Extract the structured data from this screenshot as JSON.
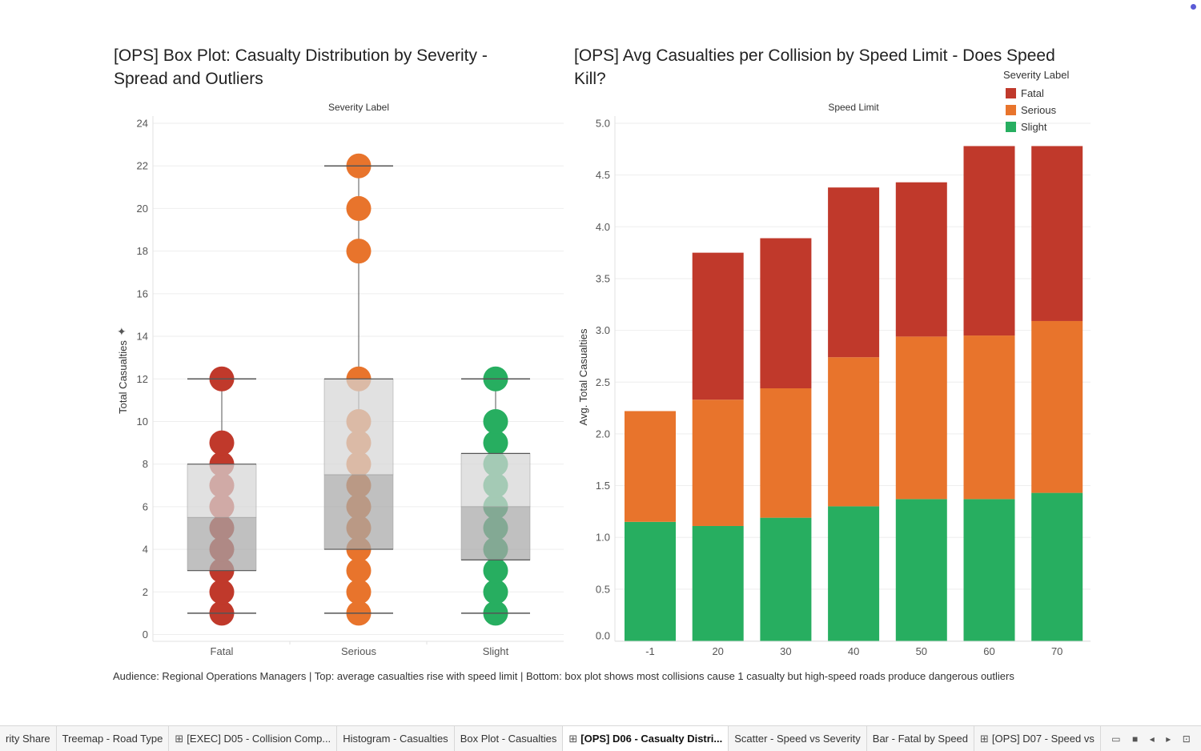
{
  "titles": {
    "left": "[OPS] Box Plot: Casualty Distribution by Severity - Spread and Outliers",
    "right": "[OPS] Avg Casualties per Collision by Speed Limit - Does Speed Kill?"
  },
  "caption": "Audience: Regional Operations Managers | Top: average casualties rise with speed limit | Bottom: box plot shows most collisions cause 1 casualty but high-speed roads produce dangerous outliers",
  "legend": {
    "title": "Severity Label",
    "items": [
      {
        "label": "Fatal",
        "color": "#c0392b"
      },
      {
        "label": "Serious",
        "color": "#e8742c"
      },
      {
        "label": "Slight",
        "color": "#27ae60"
      }
    ]
  },
  "chart_data": [
    {
      "type": "box",
      "title": "[OPS] Box Plot: Casualty Distribution by Severity - Spread and Outliers",
      "xlabel": "Severity Label",
      "ylabel": "Total Casualties",
      "ylim": [
        0,
        24
      ],
      "yticks": [
        0,
        2,
        4,
        6,
        8,
        10,
        12,
        14,
        16,
        18,
        20,
        22,
        24
      ],
      "categories": [
        "Fatal",
        "Serious",
        "Slight"
      ],
      "colors": [
        "#c0392b",
        "#e8742c",
        "#27ae60"
      ],
      "boxes": [
        {
          "category": "Fatal",
          "whisker_low": 1,
          "q1": 3,
          "median": 5.5,
          "q3": 8,
          "whisker_high": 12
        },
        {
          "category": "Serious",
          "whisker_low": 1,
          "q1": 4,
          "median": 7.5,
          "q3": 12,
          "whisker_high": 22
        },
        {
          "category": "Slight",
          "whisker_low": 1,
          "q1": 3.5,
          "median": 6,
          "q3": 8.5,
          "whisker_high": 12
        }
      ],
      "points": [
        [
          1,
          2,
          3,
          4,
          5,
          6,
          7,
          8,
          9,
          12
        ],
        [
          1,
          2,
          3,
          4,
          5,
          6,
          7,
          8,
          9,
          10,
          12,
          18,
          20,
          22
        ],
        [
          1,
          2,
          3,
          4,
          5,
          6,
          7,
          8,
          9,
          10,
          12
        ]
      ]
    },
    {
      "type": "bar",
      "stacked": true,
      "title": "[OPS] Avg Casualties per Collision by Speed Limit - Does Speed Kill?",
      "xlabel": "Speed Limit",
      "ylabel": "Avg. Total Casualties",
      "ylim": [
        0,
        5
      ],
      "yticks": [
        "0.0",
        "0.5",
        "1.0",
        "1.5",
        "2.0",
        "2.5",
        "3.0",
        "3.5",
        "4.0",
        "4.5",
        "5.0"
      ],
      "categories": [
        "-1",
        "20",
        "30",
        "40",
        "50",
        "60",
        "70"
      ],
      "legend_position": "top-right",
      "series": [
        {
          "name": "Slight",
          "color": "#27ae60",
          "values": [
            1.15,
            1.11,
            1.19,
            1.3,
            1.37,
            1.37,
            1.43
          ]
        },
        {
          "name": "Serious",
          "color": "#e8742c",
          "values": [
            1.07,
            1.22,
            1.25,
            1.44,
            1.57,
            1.58,
            1.66
          ]
        },
        {
          "name": "Fatal",
          "color": "#c0392b",
          "values": [
            0.0,
            1.42,
            1.45,
            1.64,
            1.49,
            1.83,
            1.69
          ]
        }
      ]
    }
  ],
  "tabs": [
    {
      "label": "rity Share",
      "grid": false,
      "active": false
    },
    {
      "label": "Treemap - Road Type",
      "grid": false,
      "active": false
    },
    {
      "label": "[EXEC] D05 - Collision Comp...",
      "grid": true,
      "active": false
    },
    {
      "label": "Histogram - Casualties",
      "grid": false,
      "active": false
    },
    {
      "label": "Box Plot - Casualties",
      "grid": false,
      "active": false
    },
    {
      "label": "[OPS] D06 - Casualty Distri...",
      "grid": true,
      "active": true
    },
    {
      "label": "Scatter - Speed vs Severity",
      "grid": false,
      "active": false
    },
    {
      "label": "Bar - Fatal by Speed",
      "grid": false,
      "active": false
    },
    {
      "label": "[OPS] D07 - Speed vs",
      "grid": true,
      "active": false
    }
  ],
  "icons": {
    "tab_grid": "dashboard-grid-icon",
    "pin": "pin-icon",
    "controls": [
      "film-strip-icon",
      "grid-view-icon",
      "prev-arrow-icon",
      "next-arrow-icon",
      "present-icon"
    ]
  }
}
